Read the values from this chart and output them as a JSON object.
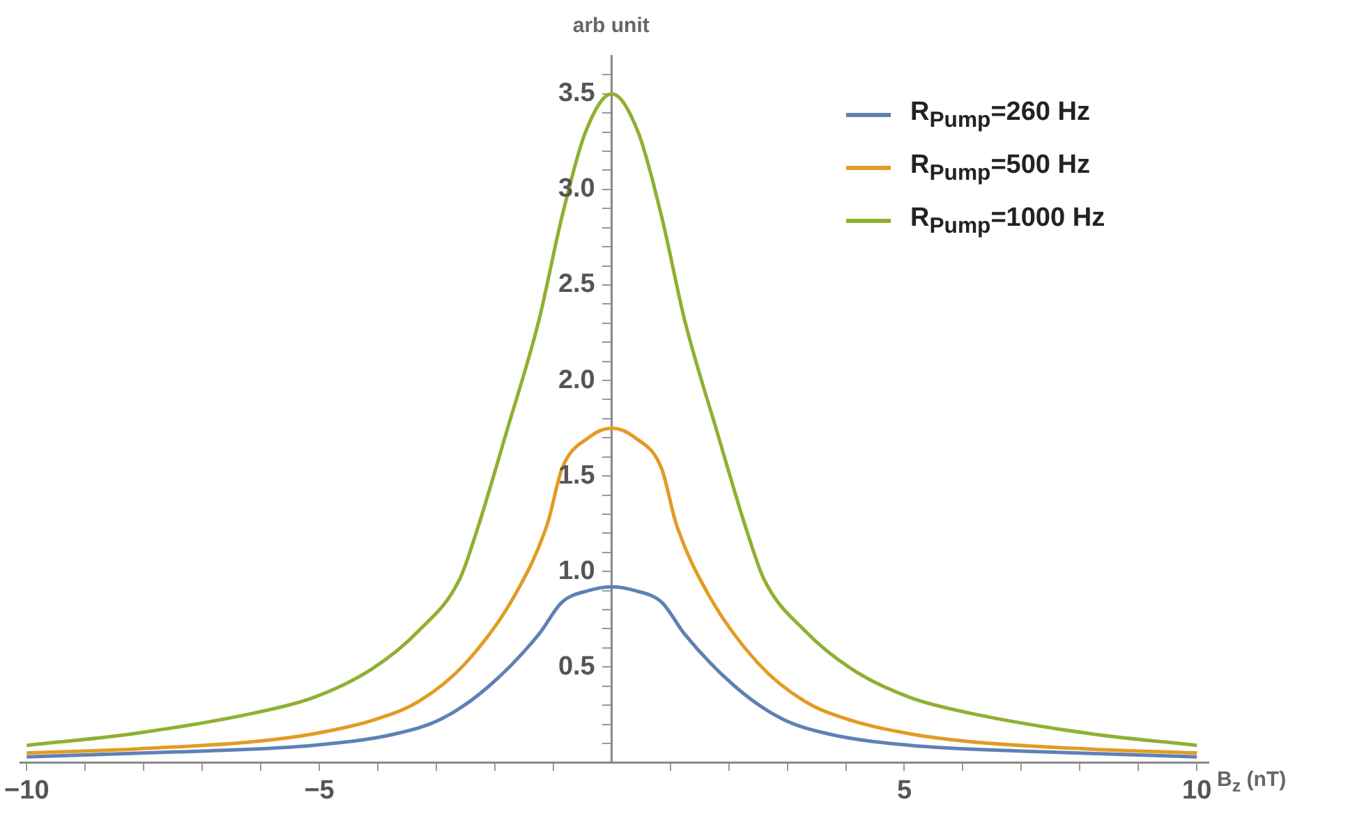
{
  "chart_data": {
    "type": "line",
    "xlabel": "B$_{z}$ (nT)",
    "ylabel": "arb unit",
    "legend": "top right",
    "grid": false,
    "marker": "none",
    "line_style": "solid",
    "xlim": [
      -10.1,
      10.2
    ],
    "ylim": [
      0,
      3.7
    ],
    "xticks": [
      {
        "value": -10,
        "label": "−10"
      },
      {
        "value": -9,
        "label": null
      },
      {
        "value": -8,
        "label": null
      },
      {
        "value": -7,
        "label": null
      },
      {
        "value": -6,
        "label": null
      },
      {
        "value": -5,
        "label": "−5"
      },
      {
        "value": -4,
        "label": null
      },
      {
        "value": -3,
        "label": null
      },
      {
        "value": -2,
        "label": null
      },
      {
        "value": -1,
        "label": null
      },
      {
        "value": 1,
        "label": null
      },
      {
        "value": 2,
        "label": null
      },
      {
        "value": 3,
        "label": null
      },
      {
        "value": 4,
        "label": null
      },
      5,
      {
        "value": 6,
        "label": null
      },
      {
        "value": 7,
        "label": null
      },
      {
        "value": 8,
        "label": null
      },
      {
        "value": 9,
        "label": null
      },
      10
    ],
    "yticks": [
      {
        "value": 0.1,
        "label": null
      },
      {
        "value": 0.2,
        "label": null
      },
      {
        "value": 0.3,
        "label": null
      },
      {
        "value": 0.4,
        "label": null
      },
      {
        "value": 0.5,
        "label": "0.5"
      },
      {
        "value": 0.6,
        "label": null
      },
      {
        "value": 0.7,
        "label": null
      },
      {
        "value": 0.8,
        "label": null
      },
      {
        "value": 0.9,
        "label": null
      },
      {
        "value": 1,
        "label": "1.0"
      },
      {
        "value": 1.1,
        "label": null
      },
      {
        "value": 1.2,
        "label": null
      },
      {
        "value": 1.3,
        "label": null
      },
      {
        "value": 1.4,
        "label": null
      },
      {
        "value": 1.5,
        "label": "1.5"
      },
      {
        "value": 1.6,
        "label": null
      },
      {
        "value": 1.7,
        "label": null
      },
      {
        "value": 1.8,
        "label": null
      },
      {
        "value": 1.9,
        "label": null
      },
      {
        "value": 2,
        "label": "2.0"
      },
      {
        "value": 2.1,
        "label": null
      },
      {
        "value": 2.2,
        "label": null
      },
      {
        "value": 2.3,
        "label": null
      },
      {
        "value": 2.4,
        "label": null
      },
      {
        "value": 2.5,
        "label": "2.5"
      },
      {
        "value": 2.6,
        "label": null
      },
      {
        "value": 2.7,
        "label": null
      },
      {
        "value": 2.8,
        "label": null
      },
      {
        "value": 2.9,
        "label": null
      },
      {
        "value": 3,
        "label": "3.0"
      },
      {
        "value": 3.1,
        "label": null
      },
      {
        "value": 3.2,
        "label": null
      },
      {
        "value": 3.3,
        "label": null
      },
      {
        "value": 3.4,
        "label": null
      },
      {
        "value": 3.5,
        "label": "3.5"
      },
      {
        "value": 3.6,
        "label": null
      }
    ],
    "series": [
      {
        "name": "R$_{Pump}$=260 Hz",
        "color": "#5e81b5",
        "x": [
          -10,
          -7,
          -5.1,
          -3.7,
          -2.9,
          -2.1,
          -1.25,
          -0.85,
          -0.4,
          0,
          0.4,
          0.85,
          1.25,
          2.1,
          2.9,
          3.7,
          5.1,
          7,
          10
        ],
        "values": [
          0.03,
          0.06,
          0.09,
          0.15,
          0.23,
          0.4,
          0.67,
          0.84,
          0.9,
          0.92,
          0.9,
          0.84,
          0.67,
          0.4,
          0.23,
          0.15,
          0.09,
          0.06,
          0.03
        ]
      },
      {
        "name": "R$_{Pump}$=500 Hz",
        "color": "#e19c24",
        "x": [
          -10,
          -8.2,
          -6.1,
          -5.1,
          -4.1,
          -3.3,
          -2.5,
          -1.65,
          -1.1,
          -0.85,
          -0.4,
          0,
          0.4,
          0.85,
          1.1,
          1.65,
          2.5,
          3.3,
          4.1,
          5.1,
          6.1,
          8.2,
          10
        ],
        "values": [
          0.05,
          0.07,
          0.11,
          0.15,
          0.22,
          0.32,
          0.52,
          0.88,
          1.25,
          1.54,
          1.7,
          1.75,
          1.7,
          1.54,
          1.25,
          0.88,
          0.52,
          0.32,
          0.22,
          0.15,
          0.11,
          0.07,
          0.05
        ]
      },
      {
        "name": "R$_{Pump}$=1000 Hz",
        "color": "#8fb032",
        "x": [
          -10,
          -8.2,
          -6.1,
          -5.1,
          -4.1,
          -3.3,
          -2.6,
          -2.3,
          -1.8,
          -1.25,
          -0.85,
          -0.45,
          0,
          0.45,
          0.85,
          1.25,
          1.8,
          2.3,
          2.6,
          3.3,
          4.1,
          5.1,
          6.1,
          8.2,
          10
        ],
        "values": [
          0.09,
          0.15,
          0.26,
          0.34,
          0.49,
          0.69,
          0.96,
          1.22,
          1.73,
          2.31,
          2.86,
          3.3,
          3.5,
          3.3,
          2.86,
          2.31,
          1.73,
          1.22,
          0.96,
          0.69,
          0.49,
          0.34,
          0.26,
          0.15,
          0.09
        ]
      }
    ]
  }
}
